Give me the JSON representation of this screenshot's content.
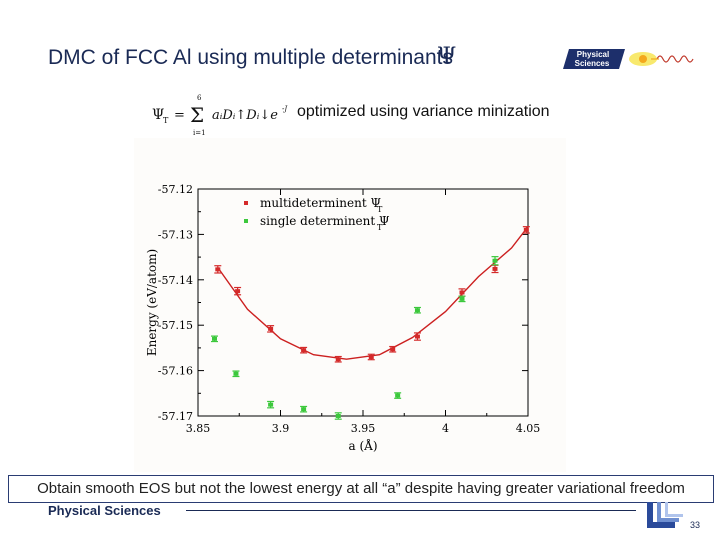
{
  "slide": {
    "title": "DMC of FCC Al using multiple determinants",
    "title_symbol": "Ψ",
    "subtitle": "optimized using variance minization",
    "formula": {
      "lhs": "Ψ",
      "lhs_sub": "T",
      "eq": "=",
      "sigma": "Σ",
      "sum_top": "6",
      "sum_bottom": "i=1",
      "body": "aᵢDᵢ↑Dᵢ↓e",
      "exponent": "-J"
    },
    "caption": "Obtain smooth EOS but not the lowest energy at all “a” despite having greater variational freedom",
    "footer_label": "Physical Sciences",
    "page_number": "33",
    "logo_line1": "Physical",
    "logo_line2": "Sciences",
    "colors": {
      "title": "#1a2a55",
      "multi": "#d42a2a",
      "single": "#3cc83c",
      "fit": "#cc2020"
    }
  },
  "chart_data": {
    "type": "scatter",
    "xlabel": "a (Å)",
    "ylabel": "Energy (eV/atom)",
    "xlim": [
      3.85,
      4.05
    ],
    "ylim": [
      -57.17,
      -57.12
    ],
    "x_ticks": [
      "3.85",
      "3.9",
      "3.95",
      "4",
      "4.05"
    ],
    "y_ticks": [
      "-57.12",
      "-57.13",
      "-57.14",
      "-57.15",
      "-57.16",
      "-57.17"
    ],
    "legend_position": "top-left",
    "series": [
      {
        "name": "multideterminent Ψ",
        "name_sub": "T",
        "color": "#d42a2a",
        "points": [
          {
            "x": 3.862,
            "y": -57.1377,
            "err": 0.0008
          },
          {
            "x": 3.874,
            "y": -57.1425,
            "err": 0.0008
          },
          {
            "x": 3.894,
            "y": -57.1508,
            "err": 0.0007
          },
          {
            "x": 3.914,
            "y": -57.1555,
            "err": 0.0006
          },
          {
            "x": 3.935,
            "y": -57.1575,
            "err": 0.0006
          },
          {
            "x": 3.955,
            "y": -57.157,
            "err": 0.0006
          },
          {
            "x": 3.968,
            "y": -57.1553,
            "err": 0.0006
          },
          {
            "x": 3.983,
            "y": -57.1525,
            "err": 0.0008
          },
          {
            "x": 4.01,
            "y": -57.1428,
            "err": 0.0008
          },
          {
            "x": 4.03,
            "y": -57.1376,
            "err": 0.0008
          },
          {
            "x": 4.049,
            "y": -57.129,
            "err": 0.0007
          }
        ],
        "fit": [
          {
            "x": 3.862,
            "y": -57.1373
          },
          {
            "x": 3.88,
            "y": -57.1465
          },
          {
            "x": 3.9,
            "y": -57.153
          },
          {
            "x": 3.92,
            "y": -57.1565
          },
          {
            "x": 3.94,
            "y": -57.1575
          },
          {
            "x": 3.96,
            "y": -57.1565
          },
          {
            "x": 3.98,
            "y": -57.1527
          },
          {
            "x": 4.0,
            "y": -57.147
          },
          {
            "x": 4.02,
            "y": -57.1393
          },
          {
            "x": 4.04,
            "y": -57.133
          },
          {
            "x": 4.05,
            "y": -57.1283
          }
        ]
      },
      {
        "name": "single determinent Ψ",
        "name_sub": "T",
        "color": "#3cc83c",
        "points": [
          {
            "x": 3.86,
            "y": -57.153,
            "err": 0.0006
          },
          {
            "x": 3.873,
            "y": -57.1607,
            "err": 0.0006
          },
          {
            "x": 3.894,
            "y": -57.1675,
            "err": 0.0007
          },
          {
            "x": 3.914,
            "y": -57.1685,
            "err": 0.0006
          },
          {
            "x": 3.935,
            "y": -57.17,
            "err": 0.0007
          },
          {
            "x": 3.971,
            "y": -57.1655,
            "err": 0.0006
          },
          {
            "x": 3.983,
            "y": -57.1467,
            "err": 0.0006
          },
          {
            "x": 4.01,
            "y": -57.1442,
            "err": 0.0006
          },
          {
            "x": 4.03,
            "y": -57.1358,
            "err": 0.0009
          }
        ]
      }
    ]
  }
}
